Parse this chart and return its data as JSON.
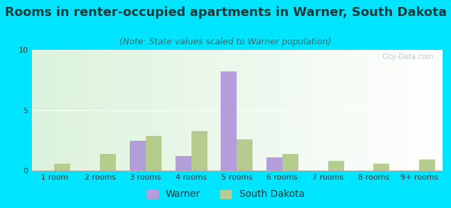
{
  "title": "Rooms in renter-occupied apartments in Warner, South Dakota",
  "subtitle": "(Note: State values scaled to Warner population)",
  "categories": [
    "1 room",
    "2 rooms",
    "3 rooms",
    "4 rooms",
    "5 rooms",
    "6 rooms",
    "7 rooms",
    "8 rooms",
    "9+ rooms"
  ],
  "warner_values": [
    0,
    0,
    2.5,
    1.2,
    8.2,
    1.1,
    0,
    0,
    0
  ],
  "sd_values": [
    0.6,
    1.4,
    2.9,
    3.3,
    2.6,
    1.4,
    0.8,
    0.6,
    0.9
  ],
  "warner_color": "#b39ddb",
  "sd_color": "#b5cc8e",
  "bg_outer": "#00e5ff",
  "ylim": [
    0,
    10
  ],
  "yticks": [
    0,
    5,
    10
  ],
  "bar_width": 0.35,
  "title_fontsize": 13,
  "subtitle_fontsize": 9,
  "tick_fontsize": 8,
  "legend_fontsize": 10
}
